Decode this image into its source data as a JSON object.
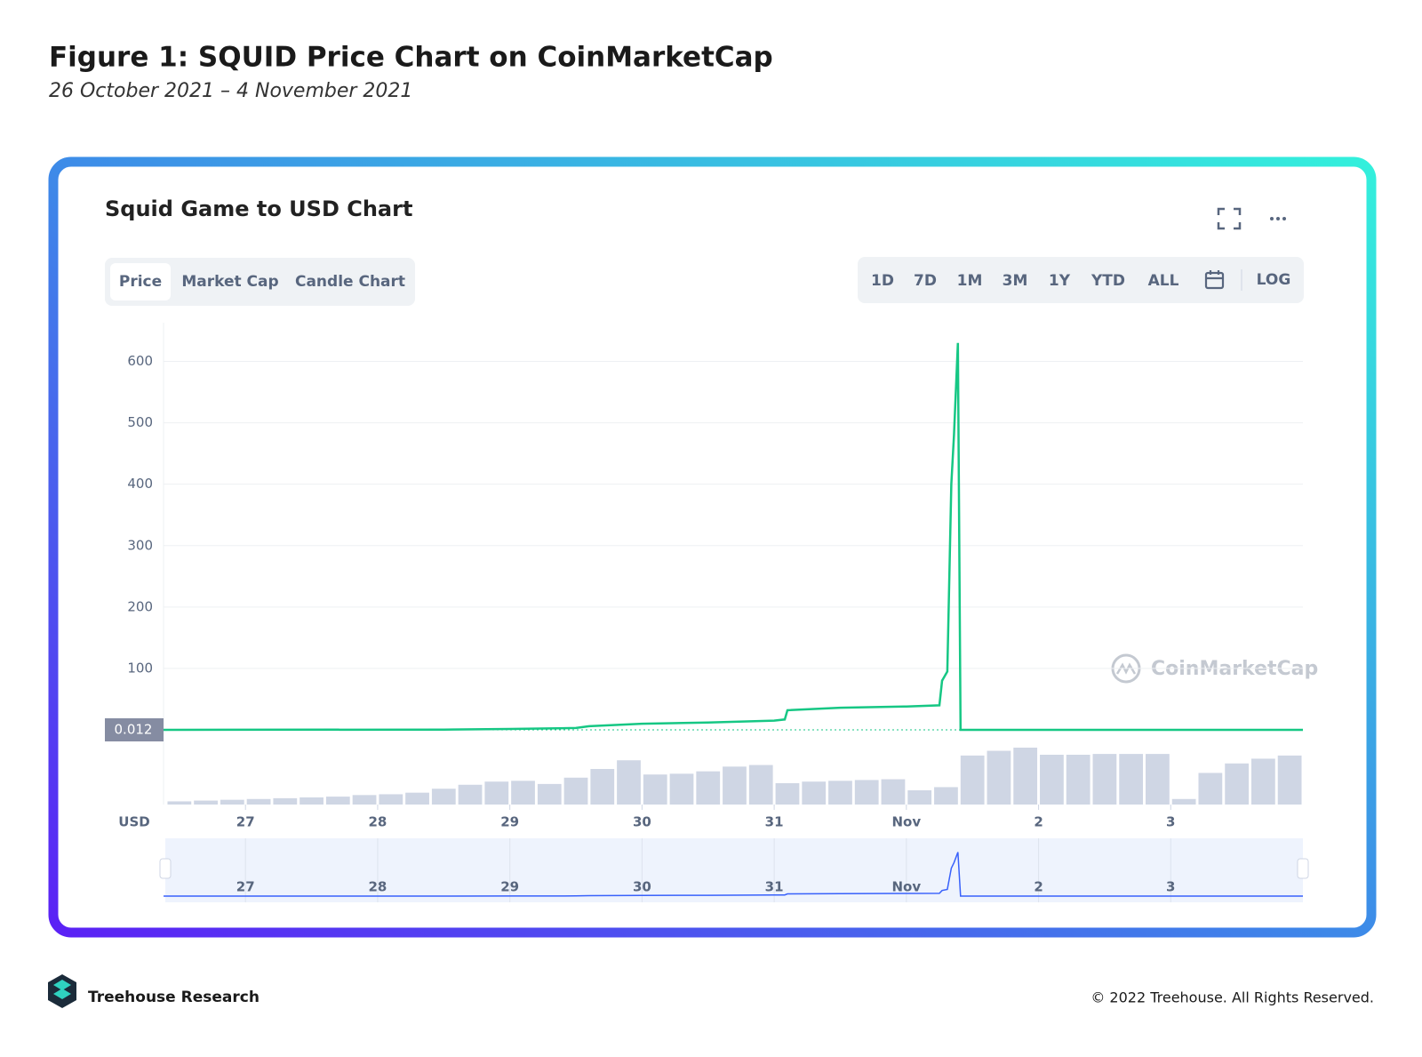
{
  "header": {
    "title": "Figure 1: SQUID Price Chart on CoinMarketCap",
    "subtitle": "26 October 2021 – 4 November 2021"
  },
  "widget": {
    "title": "Squid Game to USD Chart",
    "tabs": [
      "Price",
      "Market Cap",
      "Candle Chart"
    ],
    "ranges": [
      "1D",
      "7D",
      "1M",
      "3M",
      "1Y",
      "YTD",
      "ALL"
    ],
    "log_button": "LOG",
    "watermark": "CoinMarketCap"
  },
  "chart_data": {
    "type": "line",
    "y_label": "USD",
    "current_price": 0.012,
    "series": [
      {
        "name": "Price",
        "color": "#16c784",
        "x": [
          26.38,
          28.5,
          29.0,
          29.5,
          29.6,
          30.0,
          30.5,
          31.0,
          31.08,
          31.1,
          31.5,
          32.0,
          32.25,
          32.27,
          32.31,
          32.34,
          32.36,
          32.39,
          32.41,
          35.0
        ],
        "values": [
          0.012,
          0.5,
          1.5,
          3,
          6,
          10,
          12,
          15,
          17,
          32,
          36,
          38,
          40,
          80,
          95,
          400,
          480,
          630,
          0.012,
          0.012
        ]
      }
    ],
    "volume": {
      "color": "#cfd6e4",
      "x": [
        26.5,
        26.7,
        26.9,
        27.1,
        27.3,
        27.5,
        27.7,
        27.9,
        28.1,
        28.3,
        28.5,
        28.7,
        28.9,
        29.1,
        29.3,
        29.5,
        29.7,
        29.9,
        30.1,
        30.3,
        30.5,
        30.7,
        30.9,
        31.1,
        31.3,
        31.5,
        31.7,
        31.9,
        32.1,
        32.3,
        32.5,
        32.7,
        32.9,
        33.1,
        33.3,
        33.5,
        33.7,
        33.9,
        34.1,
        34.3,
        34.5,
        34.7,
        34.9
      ],
      "values": [
        4,
        5,
        6,
        7,
        8,
        9,
        10,
        12,
        13,
        15,
        20,
        25,
        29,
        30,
        26,
        34,
        45,
        56,
        38,
        39,
        42,
        48,
        50,
        27,
        29,
        30,
        31,
        32,
        18,
        22,
        62,
        68,
        72,
        63,
        63,
        64,
        64,
        64,
        7,
        40,
        52,
        58,
        62
      ]
    },
    "xlim": [
      26.38,
      35.0
    ],
    "xticks": [
      27,
      28,
      29,
      30,
      31,
      {
        "value": 32,
        "label": "Nov"
      },
      {
        "value": 33,
        "label": "2"
      },
      {
        "value": 34,
        "label": "3"
      }
    ],
    "ylim": [
      0,
      663
    ],
    "yticks": [
      100,
      200,
      300,
      400,
      500,
      600
    ],
    "grid": true
  },
  "footer": {
    "brand": "Treehouse Research",
    "copyright": "© 2022 Treehouse. All Rights Reserved."
  }
}
